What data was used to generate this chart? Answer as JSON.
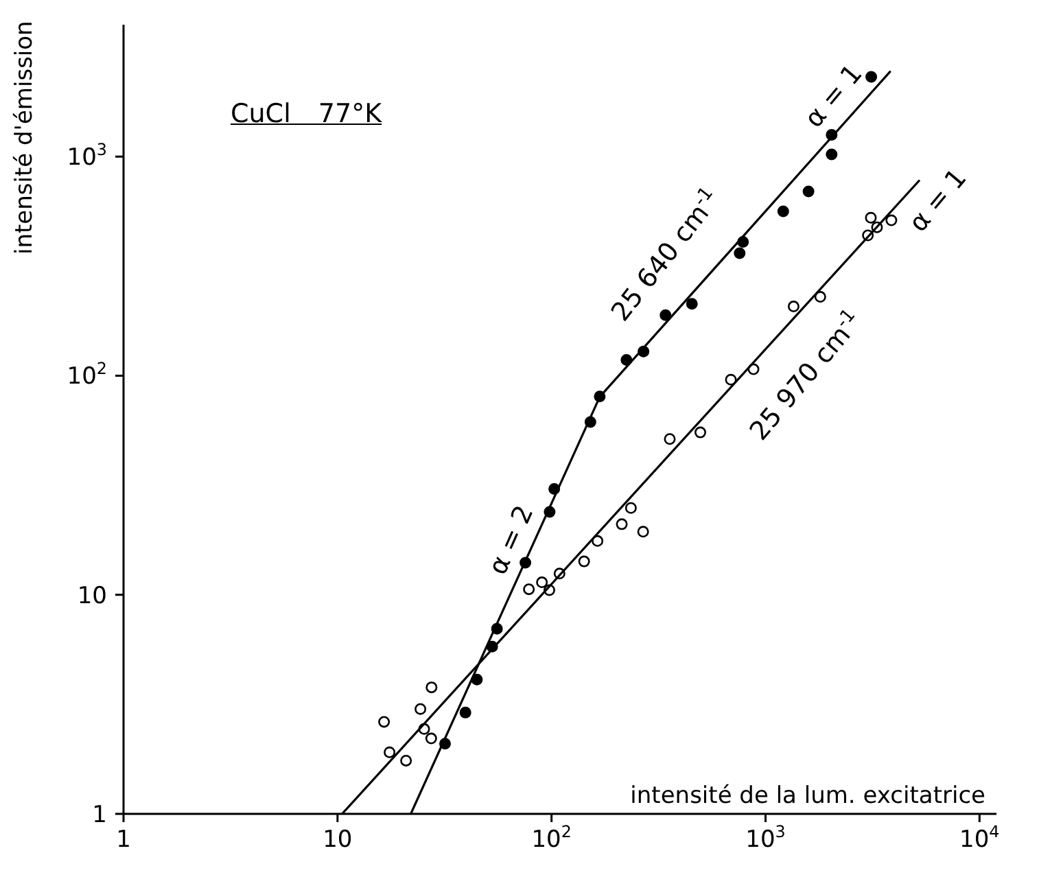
{
  "chart_data": {
    "type": "scatter",
    "xlabel": "intensité de la lum. excitatrice",
    "ylabel": "intensité d'émission",
    "log": "xy",
    "grid": false,
    "legend": false,
    "marker": "circle",
    "xlim": [
      1,
      12000
    ],
    "xticks": [
      1,
      10,
      {
        "value": 100,
        "label": "10$^{2}$"
      },
      {
        "value": 1000,
        "label": "10$^{3}$"
      },
      {
        "value": 10000,
        "label": "10$^{4}$"
      }
    ],
    "ylim": [
      1,
      4000
    ],
    "yticks": [
      1,
      10,
      {
        "value": 100,
        "label": "10$^{2}$"
      },
      {
        "value": 1000,
        "label": "10$^{3}$"
      }
    ],
    "annotations": [
      "CuCl   77°K",
      "25 640 cm$^{-1}$",
      "25 970 cm$^{-1}$",
      "α = 2",
      "α = 1",
      "α = 1"
    ],
    "series": [
      {
        "type": "scatter",
        "color": "#000000",
        "x": [
          31.8,
          39.6,
          44.8,
          52.8,
          55.6,
          75.5,
          98,
          103,
          152,
          168,
          224,
          269,
          341,
          453,
          757,
          785,
          1210,
          1588,
          2037,
          2037,
          3120
        ],
        "values": [
          2.09,
          2.9,
          4.1,
          5.8,
          7.0,
          14.0,
          23.9,
          30.4,
          61.4,
          80.4,
          118,
          129,
          189,
          213,
          362,
          408,
          562,
          693,
          1024,
          1256,
          2311
        ]
      },
      {
        "type": "scatter",
        "color": "#000000",
        "x": [
          16.5,
          17.5,
          20.9,
          24.4,
          25.4,
          27.4,
          27.5,
          78.4,
          90.2,
          97.7,
          109,
          142,
          164,
          213,
          235,
          268,
          357,
          496,
          689,
          879,
          1353,
          1803,
          3009,
          3106,
          3319,
          3874
        ],
        "values": [
          2.63,
          1.91,
          1.75,
          3.01,
          2.44,
          2.21,
          3.78,
          10.6,
          11.4,
          10.5,
          12.5,
          14.2,
          17.6,
          21.0,
          24.9,
          19.4,
          51.4,
          55.1,
          95.9,
          107,
          207,
          229,
          437,
          526,
          476,
          512
        ]
      },
      {
        "type": "line",
        "color": "#000000",
        "marker": "none",
        "x": [
          22,
          168,
          3840
        ],
        "values": [
          1,
          80,
          2455
        ]
      },
      {
        "type": "line",
        "color": "#000000",
        "marker": "none",
        "x": [
          10.5,
          5250
        ],
        "values": [
          1,
          781
        ]
      }
    ]
  }
}
